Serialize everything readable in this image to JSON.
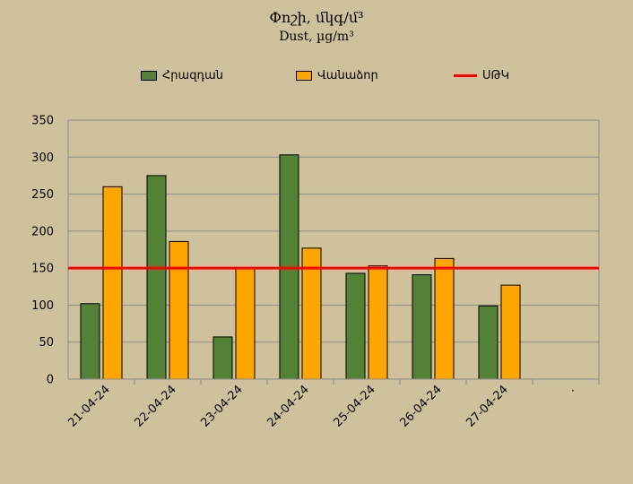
{
  "chart_data": {
    "type": "bar",
    "title": "Փոշի, մկգ/մ³",
    "subtitle": "Dust, µg/m³",
    "categories": [
      "21-04-24",
      "22-04-24",
      "23-04-24",
      "24-04-24",
      "25-04-24",
      "26-04-24",
      "27-04-24",
      "."
    ],
    "series": [
      {
        "name": "Հրազդան",
        "color": "#538135",
        "values": [
          102,
          275,
          57,
          303,
          143,
          141,
          99,
          null
        ]
      },
      {
        "name": "Վանաձոր",
        "color": "#ffa500",
        "values": [
          260,
          186,
          149,
          177,
          153,
          163,
          127,
          null
        ]
      }
    ],
    "reference_line": {
      "name": "ՍԹԿ",
      "value": 150,
      "color": "#ff0000"
    },
    "yticks": [
      0,
      50,
      100,
      150,
      200,
      250,
      300,
      350
    ],
    "ylim": [
      0,
      350
    ],
    "xlabel": "",
    "ylabel": "",
    "grid": true,
    "legend_position": "top"
  }
}
